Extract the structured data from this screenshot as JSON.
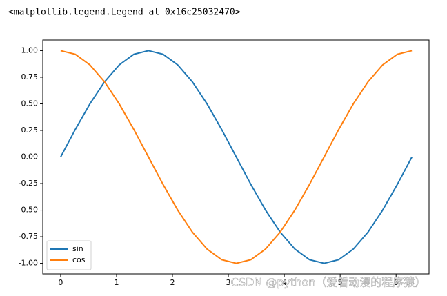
{
  "output_text": "<matplotlib.legend.Legend at 0x16c25032470>",
  "watermark": "CSDN @python（爱看动漫的程序猿）",
  "chart_data": {
    "type": "line",
    "x": [
      0,
      0.2618,
      0.5236,
      0.7854,
      1.0472,
      1.309,
      1.5708,
      1.8326,
      2.0944,
      2.3562,
      2.618,
      2.8798,
      3.1416,
      3.4034,
      3.6652,
      3.927,
      4.1888,
      4.4506,
      4.7124,
      4.9742,
      5.236,
      5.4978,
      5.7596,
      6.0214,
      6.2832
    ],
    "series": [
      {
        "name": "sin",
        "color": "#1f77b4",
        "values": [
          0,
          0.259,
          0.5,
          0.707,
          0.866,
          0.966,
          1,
          0.966,
          0.866,
          0.707,
          0.5,
          0.259,
          0,
          -0.259,
          -0.5,
          -0.707,
          -0.866,
          -0.966,
          -1,
          -0.966,
          -0.866,
          -0.707,
          -0.5,
          -0.259,
          0
        ]
      },
      {
        "name": "cos",
        "color": "#ff7f0e",
        "values": [
          1,
          0.966,
          0.866,
          0.707,
          0.5,
          0.259,
          0,
          -0.259,
          -0.5,
          -0.707,
          -0.866,
          -0.966,
          -1,
          -0.966,
          -0.866,
          -0.707,
          -0.5,
          -0.259,
          0,
          0.259,
          0.5,
          0.707,
          0.866,
          0.966,
          1
        ]
      }
    ],
    "xlim": [
      -0.32,
      6.59
    ],
    "ylim": [
      -1.1,
      1.1
    ],
    "xticks": [
      0,
      1,
      2,
      3,
      4,
      5,
      6
    ],
    "yticks": [
      {
        "value": 1,
        "label": "1.00"
      },
      {
        "value": 0.75,
        "label": "0.75"
      },
      {
        "value": 0.5,
        "label": "0.50"
      },
      {
        "value": 0.25,
        "label": "0.25"
      },
      {
        "value": 0,
        "label": "0.00"
      },
      {
        "value": -0.25,
        "label": "-0.25"
      },
      {
        "value": -0.5,
        "label": "-0.50"
      },
      {
        "value": -0.75,
        "label": "-0.75"
      },
      {
        "value": -1,
        "label": "-1.00"
      }
    ],
    "legend": "lower left"
  }
}
